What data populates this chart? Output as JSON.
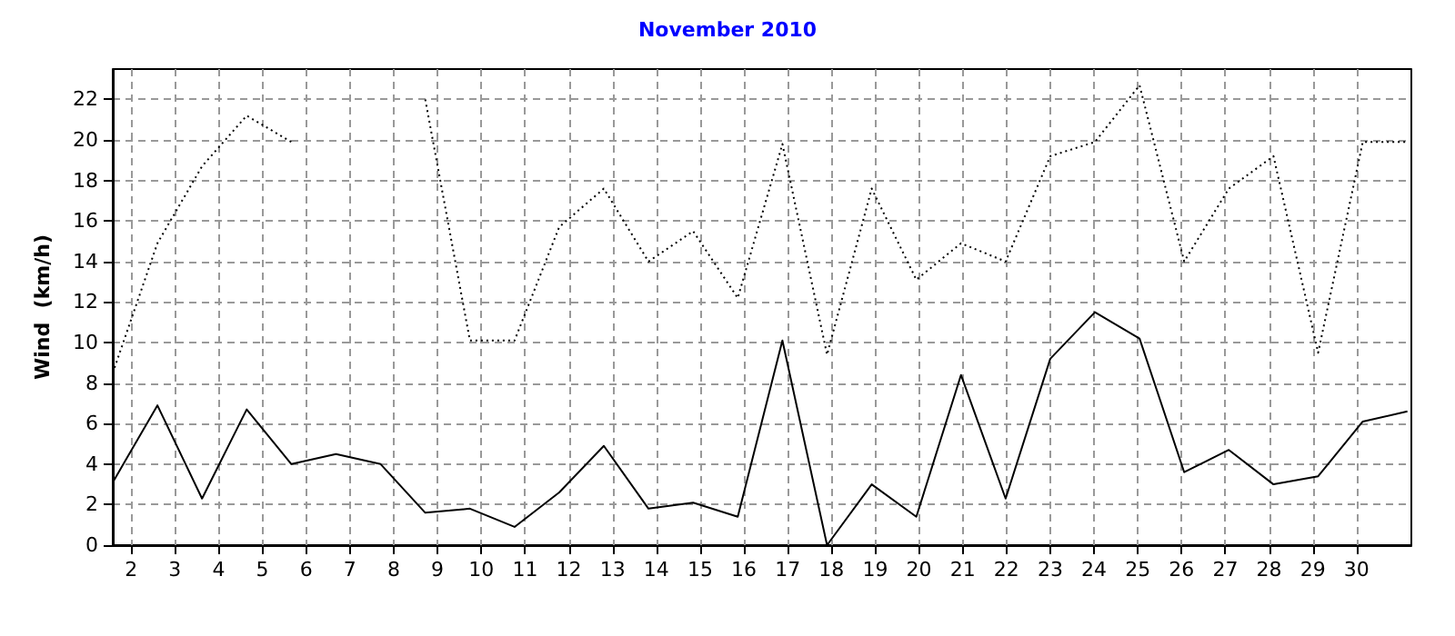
{
  "chart_data": {
    "type": "line",
    "title": "November 2010",
    "ylabel": "Wind  (km/h)",
    "x": [
      1.58,
      2.6,
      3.62,
      4.64,
      5.66,
      6.68,
      7.7,
      8.72,
      9.74,
      10.76,
      11.78,
      12.8,
      13.82,
      14.84,
      15.86,
      16.88,
      17.9,
      18.92,
      19.94,
      20.96,
      21.98,
      23.0,
      24.02,
      25.04,
      26.06,
      27.08,
      28.1,
      29.12,
      30.14,
      31.16
    ],
    "series": [
      {
        "color": "#000000",
        "line_style": "dotted",
        "values": [
          8.5,
          14.9,
          18.7,
          21.2,
          19.9,
          null,
          null,
          22.0,
          10.1,
          10.1,
          15.7,
          17.6,
          14.0,
          15.5,
          12.2,
          19.8,
          9.4,
          17.6,
          13.1,
          14.9,
          14.0,
          19.2,
          19.9,
          22.7,
          14.0,
          17.6,
          19.2,
          9.5,
          19.9,
          19.9
        ]
      },
      {
        "color": "#000000",
        "line_style": "solid",
        "values": [
          3.1,
          6.9,
          2.3,
          6.7,
          4.0,
          4.5,
          4.0,
          1.6,
          1.8,
          0.9,
          2.6,
          4.9,
          1.8,
          2.1,
          1.4,
          10.1,
          0,
          3.0,
          1.4,
          8.4,
          2.3,
          9.2,
          11.5,
          10.2,
          3.6,
          4.7,
          3.0,
          3.4,
          6.1,
          6.6
        ]
      }
    ],
    "xlim": [
      1.58,
      31.25
    ],
    "xticks": [
      2,
      3,
      4,
      5,
      6,
      7,
      8,
      9,
      10,
      11,
      12,
      13,
      14,
      15,
      16,
      17,
      18,
      19,
      20,
      21,
      22,
      23,
      24,
      25,
      26,
      27,
      28,
      29,
      30
    ],
    "ylim": [
      0,
      23.5
    ],
    "yticks": [
      0,
      2,
      4,
      6,
      8,
      10,
      12,
      14,
      16,
      18,
      20,
      22
    ],
    "grid": true,
    "marker": "none"
  }
}
